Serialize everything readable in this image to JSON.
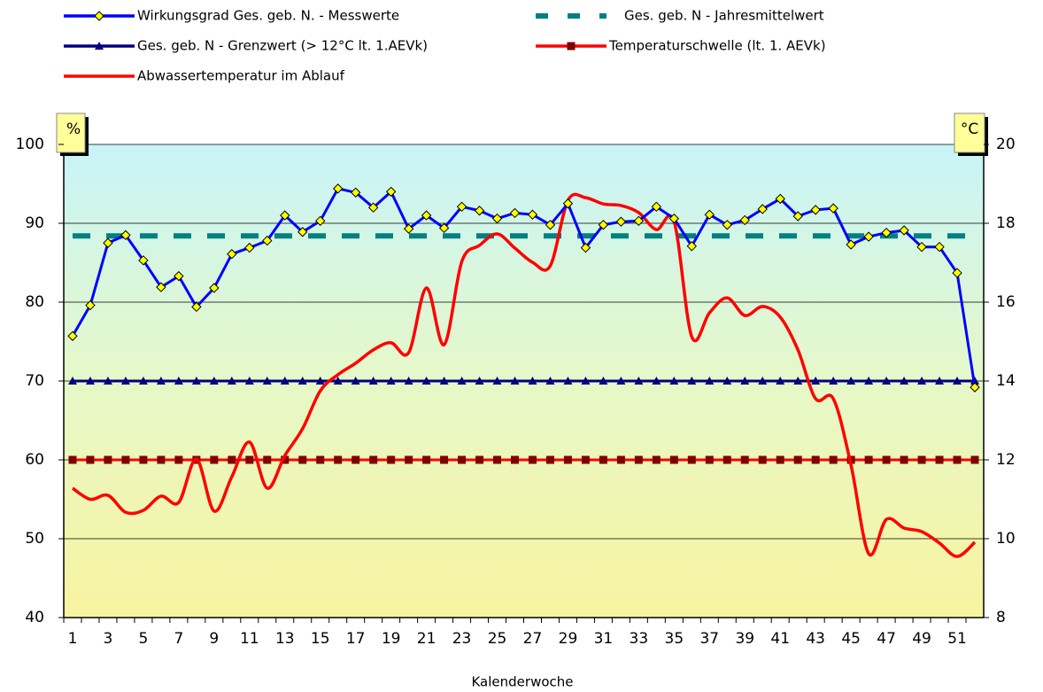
{
  "chart_data": {
    "type": "line",
    "x_label": "Kalenderwoche",
    "y_label": "%",
    "y2_label": "°C",
    "categories": [
      1,
      null,
      3,
      null,
      5,
      null,
      7,
      null,
      9,
      null,
      11,
      null,
      13,
      null,
      15,
      null,
      17,
      null,
      19,
      null,
      21,
      null,
      23,
      null,
      25,
      null,
      27,
      null,
      29,
      null,
      31,
      null,
      33,
      null,
      35,
      null,
      37,
      null,
      39,
      null,
      41,
      null,
      43,
      null,
      45,
      null,
      47,
      null,
      49,
      null,
      51,
      null
    ],
    "ylim": [
      40,
      100
    ],
    "yticks": [
      40,
      50,
      60,
      70,
      80,
      90,
      100
    ],
    "y2lim": [
      8,
      20
    ],
    "y2ticks": [
      8,
      10,
      12,
      14,
      16,
      18,
      20
    ],
    "grid": true,
    "series": [
      {
        "name": "Wirkungsgrad Ges. geb. N. - Messwerte",
        "color": "#0000ff",
        "marker": "diamond",
        "marker_color": "#ffff00",
        "values": [
          75.7,
          79.6,
          87.5,
          88.5,
          85.3,
          81.9,
          83.3,
          79.4,
          81.8,
          86.1,
          86.9,
          87.8,
          91.0,
          88.9,
          90.3,
          94.4,
          93.9,
          92.0,
          94.0,
          89.3,
          91.0,
          89.4,
          92.1,
          91.6,
          90.6,
          91.3,
          91.1,
          89.8,
          92.5,
          86.9,
          89.8,
          90.2,
          90.3,
          92.1,
          90.6,
          87.1,
          91.1,
          89.8,
          90.4,
          91.8,
          93.1,
          90.9,
          91.7,
          91.9,
          87.3,
          88.3,
          88.8,
          89.1,
          87.0,
          87.0,
          83.7,
          69.2
        ]
      },
      {
        "name": "Ges. geb. N - Jahresmittelwert",
        "color": "#008080",
        "dash": true,
        "values": [
          88.4,
          88.4,
          88.4,
          88.4,
          88.4,
          88.4,
          88.4,
          88.4,
          88.4,
          88.4,
          88.4,
          88.4,
          88.4,
          88.4,
          88.4,
          88.4,
          88.4,
          88.4,
          88.4,
          88.4,
          88.4,
          88.4,
          88.4,
          88.4,
          88.4,
          88.4,
          88.4,
          88.4,
          88.4,
          88.4,
          88.4,
          88.4,
          88.4,
          88.4,
          88.4,
          88.4,
          88.4,
          88.4,
          88.4,
          88.4,
          88.4,
          88.4,
          88.4,
          88.4,
          88.4,
          88.4,
          88.4,
          88.4,
          88.4,
          88.4,
          88.4,
          88.4
        ]
      },
      {
        "name": "Ges. geb. N - Grenzwert (> 12°C lt. 1.AEVk)",
        "color": "#000080",
        "marker": "triangle",
        "marker_color": "#000080",
        "values": [
          70,
          70,
          70,
          70,
          70,
          70,
          70,
          70,
          70,
          70,
          70,
          70,
          70,
          70,
          70,
          70,
          70,
          70,
          70,
          70,
          70,
          70,
          70,
          70,
          70,
          70,
          70,
          70,
          70,
          70,
          70,
          70,
          70,
          70,
          70,
          70,
          70,
          70,
          70,
          70,
          70,
          70,
          70,
          70,
          70,
          70,
          70,
          70,
          70,
          70,
          70,
          70
        ]
      },
      {
        "name": "Temperaturschwelle (lt. 1. AEVk)",
        "color": "#ff0000",
        "marker": "square",
        "marker_color": "#800000",
        "axis": "y2",
        "values": [
          12,
          12,
          12,
          12,
          12,
          12,
          12,
          12,
          12,
          12,
          12,
          12,
          12,
          12,
          12,
          12,
          12,
          12,
          12,
          12,
          12,
          12,
          12,
          12,
          12,
          12,
          12,
          12,
          12,
          12,
          12,
          12,
          12,
          12,
          12,
          12,
          12,
          12,
          12,
          12,
          12,
          12,
          12,
          12,
          12,
          12,
          12,
          12,
          12,
          12,
          12,
          12
        ]
      },
      {
        "name": "Abwassertemperatur im Ablauf",
        "color": "#ff0000",
        "smooth": true,
        "axis": "y2",
        "values": [
          11.28,
          11.0,
          11.1,
          10.67,
          10.72,
          11.08,
          10.92,
          12.02,
          10.7,
          11.57,
          12.45,
          11.28,
          12.11,
          12.79,
          13.75,
          14.16,
          14.45,
          14.79,
          14.97,
          14.72,
          16.36,
          14.92,
          17.03,
          17.44,
          17.73,
          17.37,
          17.01,
          16.92,
          18.58,
          18.65,
          18.49,
          18.45,
          18.27,
          17.84,
          18.04,
          15.12,
          15.73,
          16.11,
          15.66,
          15.89,
          15.62,
          14.79,
          13.55,
          13.55,
          11.87,
          9.62,
          10.49,
          10.27,
          10.18,
          9.89,
          9.55,
          9.91
        ]
      }
    ]
  }
}
